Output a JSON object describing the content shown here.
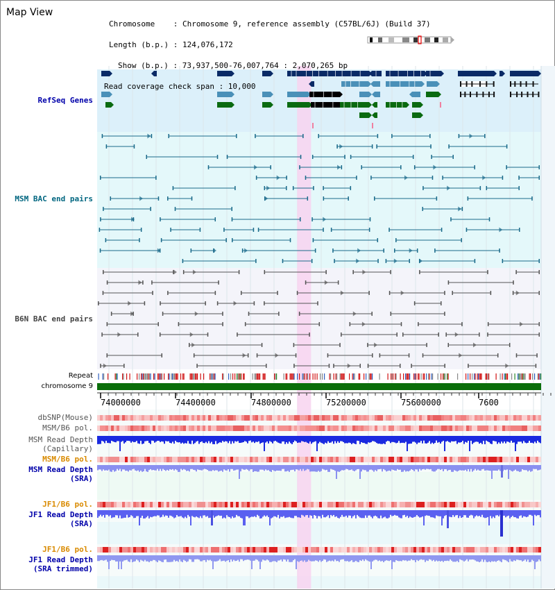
{
  "title": "Map View",
  "info": {
    "chromosome": "Chromosome    : Chromosome 9, reference assembly (C57BL/6J) (Build 37)",
    "length": "Length (b.p.) : 124,076,172",
    "show": "Show (b.p.) : 73,937,500-76,007,764 : 2,070,265 bp",
    "span": "Read coverage check span : 10,000"
  },
  "tracks": {
    "refseq": "RefSeq Genes",
    "msm_bac": "MSM BAC end pairs",
    "b6n_bac": "B6N BAC end pairs",
    "repeat": "Repeat",
    "chromosome": "chromosome 9",
    "dbsnp": "dbSNP(Mouse)",
    "msm_b6_pol": "MSM/B6 pol.",
    "msm_read_depth": "MSM Read Depth",
    "capillary": "(Capillary)",
    "msm_b6_pol_2": "MSM/B6 pol.",
    "msm_read_depth_2": "MSM Read Depth",
    "sra": "(SRA)",
    "jf1_b6_pol": "JF1/B6 pol.",
    "jf1_read_depth": "JF1 Read Depth",
    "sra_2": "(SRA)",
    "jf1_b6_pol_2": "JF1/B6 pol.",
    "jf1_read_depth_2": "JF1 Read Depth",
    "sra_trimmed": "(SRA trimmed)"
  },
  "axis": {
    "ticks": [
      "74000000",
      "74400000",
      "74800000",
      "75200000",
      "75600000",
      "7600"
    ],
    "start": 73937500,
    "end": 76007764
  },
  "highlight": {
    "start": 74870000,
    "end": 74935000
  },
  "colors": {
    "refseq_bg": "#dcf0fa",
    "msm_bg": "#e4f8fa",
    "b6n_bg": "#f4f4fa",
    "lower_bg": "#eefaf4",
    "highlight": "#f8d4f0",
    "navy": "#0a2a66",
    "steel": "#4a90b8",
    "green": "#0a6a10",
    "teal": "#1a6a8a",
    "gray": "#555555",
    "orange_label": "#d98a00",
    "blue_label": "#0000aa",
    "refseq_label": "#0000aa",
    "msm_label": "#006680",
    "b6n_label": "#444444"
  }
}
